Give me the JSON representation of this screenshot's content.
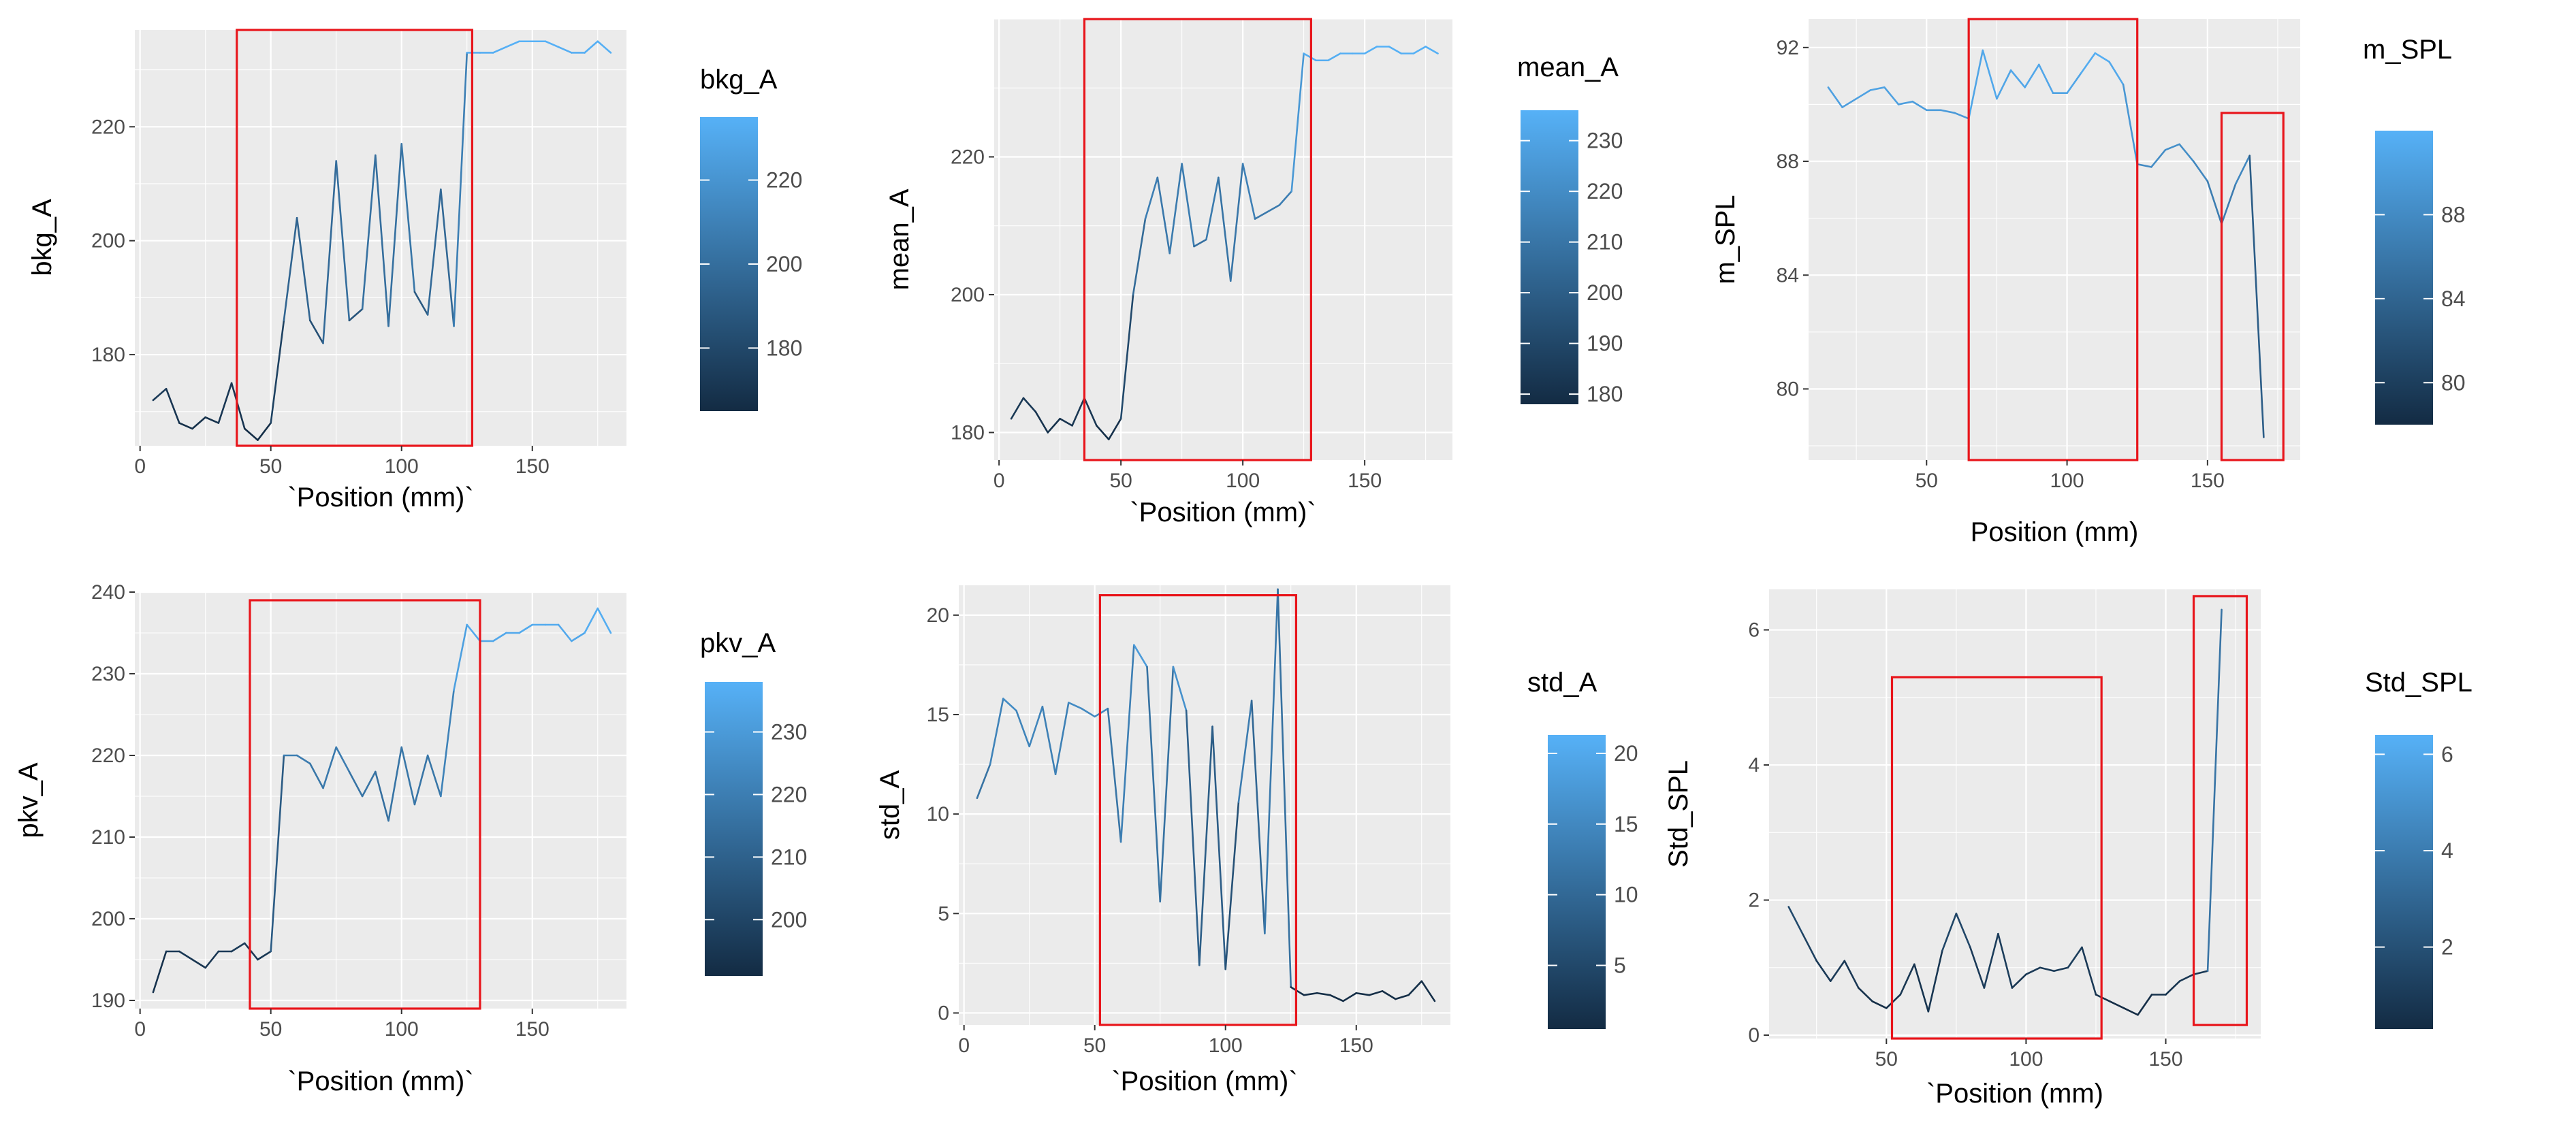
{
  "chart_data": [
    {
      "type": "line",
      "xlabel": "`Position (mm)`",
      "ylabel": "bkg_A",
      "legend_title": "bkg_A",
      "xlim": [
        -2,
        186
      ],
      "ylim": [
        164,
        237
      ],
      "xticks": [
        0,
        50,
        100,
        150
      ],
      "yticks": [
        180,
        200,
        220
      ],
      "legend_range": [
        165,
        235
      ],
      "legend_ticks": [
        180,
        200,
        220
      ],
      "x": [
        5,
        10,
        15,
        20,
        25,
        30,
        35,
        40,
        45,
        50,
        55,
        60,
        65,
        70,
        75,
        80,
        85,
        90,
        95,
        100,
        105,
        110,
        115,
        120,
        125,
        130,
        135,
        140,
        145,
        150,
        155,
        160,
        165,
        170,
        175,
        180
      ],
      "y": [
        172,
        174,
        168,
        167,
        169,
        168,
        175,
        167,
        165,
        168,
        186,
        204,
        186,
        182,
        214,
        186,
        188,
        215,
        185,
        217,
        191,
        187,
        209,
        185,
        233,
        233,
        233,
        234,
        235,
        235,
        235,
        234,
        233,
        233,
        235,
        233
      ],
      "highlight_boxes": [
        [
          37,
          127,
          164,
          237
        ]
      ]
    },
    {
      "type": "line",
      "xlabel": "`Position (mm)`",
      "ylabel": "mean_A",
      "legend_title": "mean_A",
      "xlim": [
        -2,
        186
      ],
      "ylim": [
        176,
        240
      ],
      "xticks": [
        0,
        50,
        100,
        150
      ],
      "yticks": [
        180,
        200,
        220
      ],
      "legend_range": [
        178,
        236
      ],
      "legend_ticks": [
        180,
        190,
        200,
        210,
        220,
        230
      ],
      "x": [
        5,
        10,
        15,
        20,
        25,
        30,
        35,
        40,
        45,
        50,
        55,
        60,
        65,
        70,
        75,
        80,
        85,
        90,
        95,
        100,
        105,
        110,
        115,
        120,
        125,
        130,
        135,
        140,
        145,
        150,
        155,
        160,
        165,
        170,
        175,
        180
      ],
      "y": [
        182,
        185,
        183,
        180,
        182,
        181,
        185,
        181,
        179,
        182,
        200,
        211,
        217,
        206,
        219,
        207,
        208,
        217,
        202,
        219,
        211,
        212,
        213,
        215,
        235,
        234,
        234,
        235,
        235,
        235,
        236,
        236,
        235,
        235,
        236,
        235
      ],
      "highlight_boxes": [
        [
          35,
          128,
          176,
          240
        ]
      ]
    },
    {
      "type": "line",
      "xlabel": "Position (mm)",
      "ylabel": "m_SPL",
      "legend_title": "m_SPL",
      "xlim": [
        8,
        183
      ],
      "ylim": [
        77.5,
        93
      ],
      "xticks": [
        50,
        100,
        150
      ],
      "yticks": [
        80,
        84,
        88,
        92
      ],
      "legend_range": [
        78,
        92
      ],
      "legend_ticks": [
        80,
        84,
        88
      ],
      "x": [
        15,
        20,
        25,
        30,
        35,
        40,
        45,
        50,
        55,
        60,
        65,
        70,
        75,
        80,
        85,
        90,
        95,
        100,
        105,
        110,
        115,
        120,
        125,
        130,
        135,
        140,
        145,
        150,
        155,
        160,
        165,
        170
      ],
      "y": [
        90.6,
        89.9,
        90.2,
        90.5,
        90.6,
        90.0,
        90.1,
        89.8,
        89.8,
        89.7,
        89.5,
        91.9,
        90.2,
        91.2,
        90.6,
        91.4,
        90.4,
        90.4,
        91.1,
        91.8,
        91.5,
        90.7,
        87.9,
        87.8,
        88.4,
        88.6,
        88.0,
        87.3,
        85.8,
        87.2,
        88.2,
        78.3
      ],
      "highlight_boxes": [
        [
          65,
          125,
          77.5,
          93
        ],
        [
          155,
          177,
          77.5,
          89.7
        ]
      ]
    },
    {
      "type": "line",
      "xlabel": "`Position (mm)`",
      "ylabel": "pkv_A",
      "legend_title": "pkv_A",
      "xlim": [
        -2,
        186
      ],
      "ylim": [
        189,
        240
      ],
      "xticks": [
        0,
        50,
        100,
        150
      ],
      "yticks": [
        190,
        200,
        210,
        220,
        230,
        240
      ],
      "legend_range": [
        191,
        238
      ],
      "legend_ticks": [
        200,
        210,
        220,
        230
      ],
      "x": [
        5,
        10,
        15,
        20,
        25,
        30,
        35,
        40,
        45,
        50,
        55,
        60,
        65,
        70,
        75,
        80,
        85,
        90,
        95,
        100,
        105,
        110,
        115,
        120,
        125,
        130,
        135,
        140,
        145,
        150,
        155,
        160,
        165,
        170,
        175,
        180
      ],
      "y": [
        191,
        196,
        196,
        195,
        194,
        196,
        196,
        197,
        195,
        196,
        220,
        220,
        219,
        216,
        221,
        218,
        215,
        218,
        212,
        221,
        214,
        220,
        215,
        228,
        236,
        234,
        234,
        235,
        235,
        236,
        236,
        236,
        234,
        235,
        238,
        235
      ],
      "highlight_boxes": [
        [
          42,
          130,
          189,
          239
        ]
      ]
    },
    {
      "type": "line",
      "xlabel": "`Position (mm)`",
      "ylabel": "std_A",
      "legend_title": "std_A",
      "xlim": [
        -2,
        186
      ],
      "ylim": [
        -0.6,
        21.5
      ],
      "xticks": [
        0,
        50,
        100,
        150
      ],
      "yticks": [
        0,
        5,
        10,
        15,
        20
      ],
      "legend_range": [
        0.5,
        21.3
      ],
      "legend_ticks": [
        5,
        10,
        15,
        20
      ],
      "x": [
        5,
        10,
        15,
        20,
        25,
        30,
        35,
        40,
        45,
        50,
        55,
        60,
        65,
        70,
        75,
        80,
        85,
        90,
        95,
        100,
        105,
        110,
        115,
        120,
        125,
        130,
        135,
        140,
        145,
        150,
        155,
        160,
        165,
        170,
        175,
        180
      ],
      "y": [
        10.8,
        12.5,
        15.8,
        15.2,
        13.4,
        15.4,
        12.0,
        15.6,
        15.3,
        14.9,
        15.3,
        8.6,
        18.5,
        17.4,
        5.6,
        17.4,
        15.2,
        2.4,
        14.4,
        2.2,
        10.6,
        15.7,
        4.0,
        21.3,
        1.3,
        0.9,
        1.0,
        0.9,
        0.6,
        1.0,
        0.9,
        1.1,
        0.7,
        0.9,
        1.6,
        0.6
      ],
      "highlight_boxes": [
        [
          52,
          127,
          -0.6,
          21
        ]
      ]
    },
    {
      "type": "line",
      "xlabel": "`Position (mm)",
      "ylabel": "Std_SPL",
      "legend_title": "Std_SPL",
      "xlim": [
        8,
        184
      ],
      "ylim": [
        -0.05,
        6.6
      ],
      "xticks": [
        50,
        100,
        150
      ],
      "yticks": [
        0,
        2,
        4,
        6
      ],
      "legend_range": [
        0.3,
        6.4
      ],
      "legend_ticks": [
        2,
        4,
        6
      ],
      "x": [
        15,
        20,
        25,
        30,
        35,
        40,
        45,
        50,
        55,
        60,
        65,
        70,
        75,
        80,
        85,
        90,
        95,
        100,
        105,
        110,
        115,
        120,
        125,
        130,
        135,
        140,
        145,
        150,
        155,
        160,
        165,
        170
      ],
      "y": [
        1.9,
        1.5,
        1.1,
        0.8,
        1.1,
        0.7,
        0.5,
        0.4,
        0.6,
        1.05,
        0.35,
        1.25,
        1.8,
        1.3,
        0.7,
        1.5,
        0.7,
        0.9,
        1.0,
        0.95,
        1.0,
        1.3,
        0.6,
        0.5,
        0.4,
        0.3,
        0.6,
        0.6,
        0.8,
        0.9,
        0.95,
        6.3
      ],
      "highlight_boxes": [
        [
          52,
          127,
          -0.05,
          5.3
        ],
        [
          160,
          179,
          0.15,
          6.5
        ]
      ]
    }
  ]
}
